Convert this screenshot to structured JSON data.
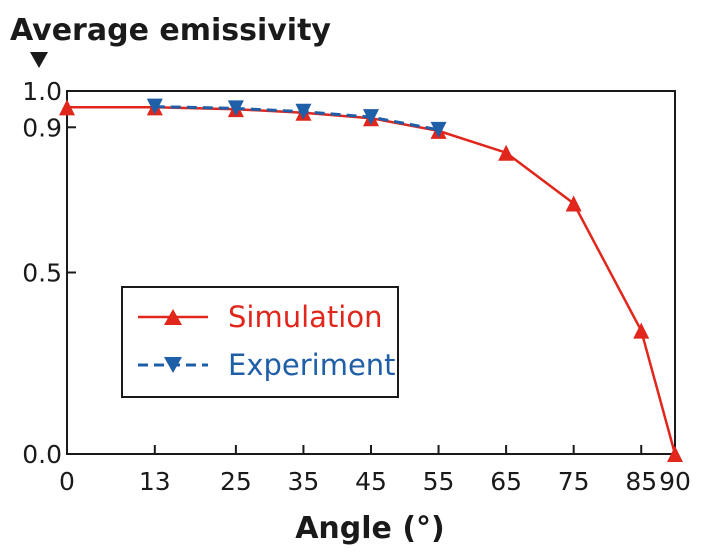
{
  "chart_data": {
    "type": "line",
    "ylabel": "Average emissivity",
    "xlabel": "Angle (°)",
    "x_ticks": [
      0,
      13,
      25,
      35,
      45,
      55,
      65,
      75,
      85,
      90
    ],
    "y_ticks": [
      0.0,
      0.5,
      0.9,
      1.0
    ],
    "y_tick_labels": [
      "0.0",
      "0.5",
      "0.9",
      "1.0"
    ],
    "xlim": [
      0,
      90
    ],
    "ylim": [
      0,
      1.0
    ],
    "legend_position": "center-left",
    "series": [
      {
        "name": "Simulation",
        "color": "#e1261c",
        "marker": "triangle-up",
        "style": "solid",
        "x": [
          0,
          13,
          25,
          35,
          45,
          55,
          65,
          75,
          85,
          90
        ],
        "y": [
          0.955,
          0.955,
          0.95,
          0.94,
          0.925,
          0.89,
          0.83,
          0.69,
          0.34,
          0.0
        ]
      },
      {
        "name": "Experiment",
        "color": "#1f5fa8",
        "marker": "triangle-down",
        "style": "dashed",
        "x": [
          13,
          25,
          35,
          45,
          55
        ],
        "y": [
          0.957,
          0.952,
          0.943,
          0.928,
          0.893
        ]
      }
    ]
  }
}
